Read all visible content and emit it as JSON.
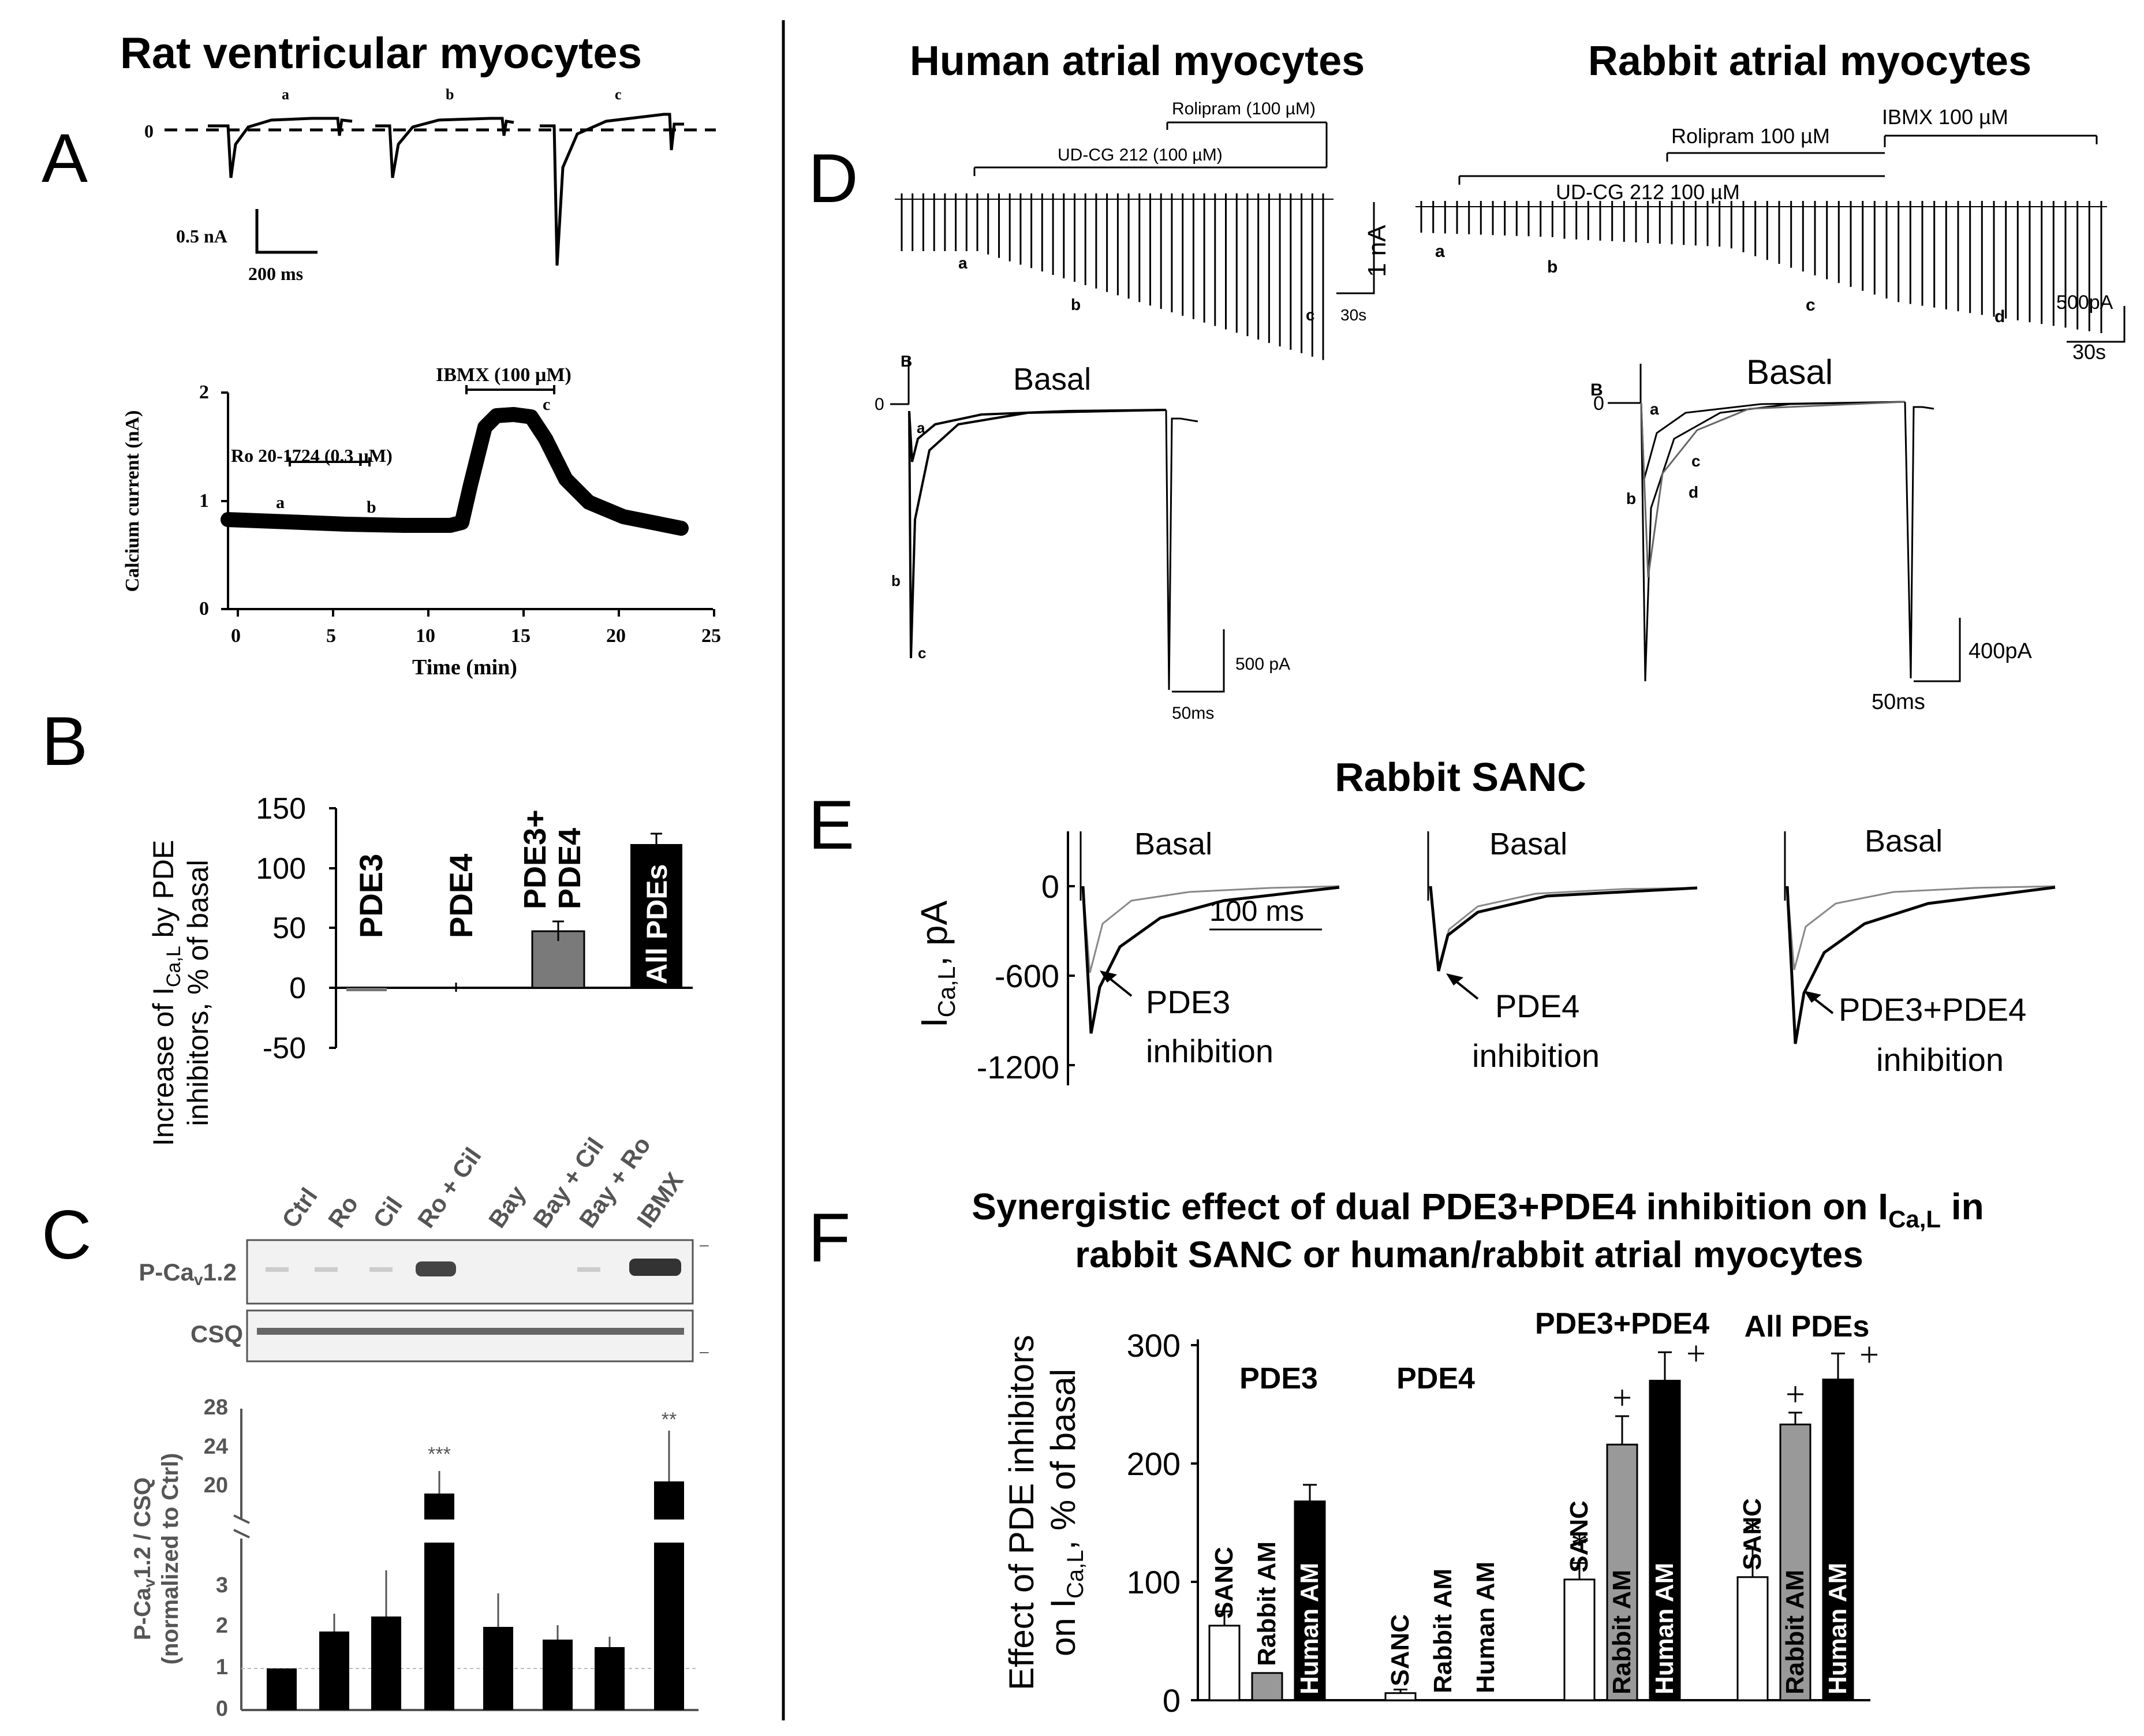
{
  "panel_letters": {
    "A": "A",
    "B": "B",
    "C": "C",
    "D": "D",
    "E": "E",
    "F": "F"
  },
  "titles": {
    "rat": "Rat ventricular myocytes",
    "human": "Human atrial myocytes",
    "rabbit": "Rabbit atrial myocytes",
    "sanc": "Rabbit SANC",
    "f_line1": "Synergistic effect of dual PDE3+PDE4 inhibition on I",
    "f_line1_sub": "Ca,L",
    "f_line1_tail": " in",
    "f_line2": "rabbit SANC or human/rabbit atrial myocytes"
  },
  "panelA": {
    "trace_labels": [
      "a",
      "b",
      "c"
    ],
    "zero": "0",
    "scale_y": "0.5 nA",
    "scale_x": "200 ms",
    "ibmx": "IBMX (100 µM)",
    "ro": "Ro 20-1724 (0.3 µM)",
    "ylabel": "Calcium current (nA)",
    "xlabel": "Time (min)",
    "yticks": [
      "0",
      "1",
      "2"
    ],
    "xticks": [
      "0",
      "5",
      "10",
      "15",
      "20",
      "25"
    ],
    "pt_a": "a",
    "pt_b": "b",
    "pt_c": "c"
  },
  "panelB": {
    "ylabel1": "Increase of I",
    "ylabel1_sub": "Ca,L",
    "ylabel1_tail": " by PDE",
    "ylabel2": "inhibitors, % of basal",
    "yticks": [
      "150",
      "100",
      "50",
      "0",
      "-50"
    ],
    "labels": [
      "PDE3",
      "PDE4",
      "PDE3+",
      "PDE4",
      "All PDEs"
    ]
  },
  "panelC": {
    "lanes": [
      "Ctrl",
      "Ro",
      "Cil",
      "Ro + Cil",
      "Bay",
      "Bay + Cil",
      "Bay + Ro",
      "IBMX"
    ],
    "blot1": "P-Ca",
    "blot1_sub": "v",
    "blot1_tail": "1.2",
    "blot2": "CSQ",
    "ylabel1": "P-Ca",
    "ylabel1_sub": "v",
    "ylabel1_tail": "1.2 / CSQ",
    "ylabel2": "(normalized to Ctrl)",
    "yticks_top": [
      "28",
      "24",
      "20"
    ],
    "yticks_bottom": [
      "3",
      "2",
      "1",
      "0"
    ],
    "sig": [
      "***",
      "**"
    ]
  },
  "panelD": {
    "human": {
      "rolipram": "Rolipram (100 µM)",
      "udcg": "UD-CG 212 (100 µM)",
      "scale_y": "1 nA",
      "scale_x": "30s",
      "basal": "Basal",
      "b_label": "B",
      "zero": "0",
      "scale2_y": "500 pA",
      "scale2_x": "50ms",
      "pts": [
        "a",
        "b",
        "c"
      ]
    },
    "rabbit": {
      "ibmx": "IBMX 100 µM",
      "rolipram": "Rolipram 100 µM",
      "udcg": "UD-CG 212 100 µM",
      "scale_y": "500pA",
      "scale_x": "30s",
      "basal": "Basal",
      "b_label": "B",
      "zero": "0",
      "scale2_y": "400pA",
      "scale2_x": "50ms",
      "pts": [
        "a",
        "b",
        "c",
        "d"
      ]
    }
  },
  "panelE": {
    "ylabel": "I",
    "ylabel_sub": "Ca,L",
    "ylabel_tail": ", pA",
    "yticks": [
      "0",
      "-600",
      "-1200"
    ],
    "basal": "Basal",
    "scale": "100 ms",
    "labels": [
      [
        "PDE3",
        "inhibition"
      ],
      [
        "PDE4",
        "inhibition"
      ],
      [
        "PDE3+PDE4",
        "inhibition"
      ]
    ]
  },
  "chart_data": {
    "type": "bar",
    "title": "Synergistic effect of dual PDE3+PDE4 inhibition on ICa,L in rabbit SANC or human/rabbit atrial myocytes",
    "ylabel": "Effect of PDE inhibitors on ICa,L, % of basal",
    "ylim": [
      0,
      300
    ],
    "yticks": [
      "300",
      "200",
      "100",
      "0"
    ],
    "groups": [
      "PDE3",
      "PDE4",
      "PDE3+PDE4",
      "All PDEs"
    ],
    "series": [
      {
        "name": "SANC",
        "color": "#ffffff",
        "values": [
          63,
          6,
          102,
          104
        ],
        "errors": [
          12,
          3,
          14,
          24
        ]
      },
      {
        "name": "Rabbit AM",
        "color": "#999999",
        "values": [
          23,
          0,
          216,
          233
        ],
        "errors": [
          0,
          0,
          24,
          10
        ]
      },
      {
        "name": "Human AM",
        "color": "#000000",
        "values": [
          168,
          0,
          270,
          271
        ],
        "errors": [
          14,
          0,
          24,
          22
        ]
      }
    ],
    "markers": {
      "star": "*",
      "plus": "+"
    }
  }
}
